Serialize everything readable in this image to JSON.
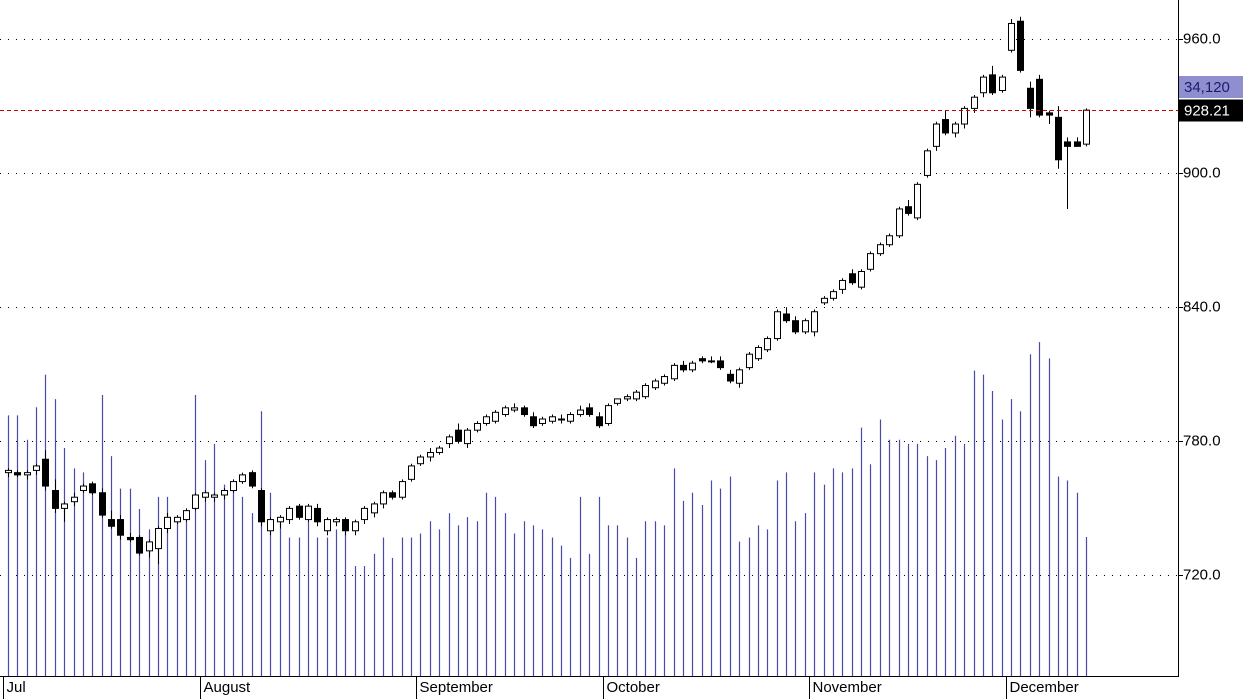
{
  "chart_data": {
    "type": "candlestick",
    "categories": [
      "Jul",
      null,
      null,
      null,
      null,
      null,
      null,
      null,
      null,
      null,
      null,
      null,
      null,
      null,
      null,
      null,
      null,
      null,
      null,
      null,
      null,
      "August",
      null,
      null,
      null,
      null,
      null,
      null,
      null,
      null,
      null,
      null,
      null,
      null,
      null,
      null,
      null,
      null,
      null,
      null,
      null,
      null,
      null,
      null,
      "September",
      null,
      null,
      null,
      null,
      null,
      null,
      null,
      null,
      null,
      null,
      null,
      null,
      null,
      null,
      null,
      null,
      null,
      null,
      null,
      "October",
      null,
      null,
      null,
      null,
      null,
      null,
      null,
      null,
      null,
      null,
      null,
      null,
      null,
      null,
      null,
      null,
      null,
      null,
      null,
      null,
      null,
      "November",
      null,
      null,
      null,
      null,
      null,
      null,
      null,
      null,
      null,
      null,
      null,
      null,
      null,
      null,
      null,
      null,
      null,
      null,
      null,
      null,
      "December",
      null,
      null,
      null,
      null,
      null,
      null,
      null,
      null
    ],
    "open": [
      766,
      766,
      765,
      767,
      772,
      758,
      750,
      753,
      758,
      761,
      757,
      745,
      745,
      737,
      737,
      731,
      732,
      741,
      744,
      745,
      750,
      755,
      755,
      756,
      758,
      762,
      766,
      758,
      740,
      744,
      745,
      751,
      745,
      750,
      740,
      744,
      745,
      740,
      745,
      748,
      752,
      757,
      755,
      763,
      770,
      773,
      775,
      779,
      785,
      779,
      785,
      788,
      789,
      792,
      794,
      795,
      791,
      788,
      789,
      790,
      789,
      792,
      795,
      791,
      788,
      797,
      799,
      799,
      800,
      804,
      806,
      808,
      814,
      812,
      817,
      816,
      816,
      810,
      806,
      813,
      817,
      821,
      826,
      837,
      834,
      829,
      829,
      842,
      844,
      848,
      855,
      849,
      857,
      864,
      868,
      872,
      885,
      880,
      899,
      912,
      924,
      918,
      922,
      929,
      936,
      944,
      937,
      955,
      968,
      938,
      942,
      927,
      925,
      914,
      914,
      913
    ],
    "high": [
      768,
      767,
      767,
      770,
      776,
      763,
      753,
      757,
      761,
      762,
      759,
      749,
      747,
      739,
      738,
      736,
      742,
      748,
      747,
      750,
      757,
      758,
      757,
      759,
      763,
      766,
      767,
      759,
      746,
      747,
      751,
      752,
      752,
      752,
      746,
      746,
      746,
      745,
      751,
      753,
      758,
      758,
      763,
      770,
      774,
      777,
      778,
      783,
      788,
      786,
      789,
      792,
      794,
      796,
      797,
      796,
      793,
      791,
      792,
      792,
      793,
      796,
      797,
      793,
      797,
      799,
      801,
      803,
      806,
      808,
      810,
      815,
      816,
      816,
      818,
      818,
      818,
      812,
      813,
      820,
      823,
      827,
      839,
      840,
      836,
      835,
      839,
      845,
      848,
      853,
      857,
      857,
      865,
      869,
      873,
      885,
      888,
      896,
      911,
      923,
      928,
      923,
      930,
      935,
      944,
      948,
      944,
      969,
      970,
      941,
      944,
      928,
      930,
      916,
      916,
      929
    ],
    "low": [
      764,
      764,
      763,
      765,
      758,
      748,
      744,
      751,
      757,
      756,
      746,
      741,
      736,
      735,
      729,
      728,
      725,
      739,
      743,
      744,
      749,
      753,
      753,
      754,
      757,
      761,
      759,
      742,
      738,
      741,
      743,
      745,
      744,
      742,
      738,
      742,
      738,
      738,
      743,
      746,
      750,
      754,
      754,
      762,
      769,
      771,
      774,
      777,
      779,
      777,
      784,
      787,
      788,
      791,
      793,
      791,
      786,
      787,
      788,
      788,
      788,
      791,
      791,
      786,
      787,
      796,
      798,
      798,
      799,
      803,
      805,
      807,
      811,
      811,
      815,
      815,
      812,
      806,
      804,
      812,
      816,
      820,
      825,
      833,
      828,
      828,
      827,
      841,
      843,
      846,
      850,
      848,
      856,
      863,
      867,
      871,
      881,
      879,
      898,
      910,
      917,
      916,
      920,
      927,
      934,
      935,
      936,
      954,
      945,
      925,
      925,
      922,
      902,
      884,
      912,
      912
    ],
    "close": [
      767,
      765,
      766,
      769,
      760,
      750,
      752,
      755,
      760,
      757,
      747,
      742,
      738,
      736,
      730,
      735,
      741,
      746,
      746,
      749,
      756,
      757,
      756,
      758,
      762,
      765,
      760,
      744,
      745,
      746,
      750,
      746,
      751,
      744,
      745,
      745,
      740,
      744,
      750,
      752,
      757,
      755,
      762,
      769,
      773,
      775,
      777,
      782,
      780,
      785,
      788,
      791,
      793,
      795,
      795,
      792,
      787,
      790,
      791,
      790,
      792,
      794,
      792,
      787,
      796,
      799,
      800,
      802,
      805,
      807,
      809,
      814,
      812,
      815,
      816,
      816,
      813,
      807,
      812,
      819,
      822,
      826,
      838,
      834,
      829,
      834,
      838,
      844,
      847,
      852,
      851,
      856,
      864,
      868,
      872,
      884,
      882,
      895,
      910,
      922,
      918,
      922,
      929,
      934,
      943,
      936,
      943,
      967,
      946,
      929,
      926,
      926,
      906,
      912,
      912,
      928.21
    ],
    "volume": {
      "axis": "y2",
      "color": "#4a4aa8",
      "values": [
        64000,
        64000,
        58000,
        66000,
        74000,
        68000,
        56000,
        51000,
        50000,
        46000,
        69000,
        54000,
        46000,
        46000,
        41000,
        36000,
        44000,
        44000,
        38000,
        38000,
        69000,
        53000,
        57000,
        47000,
        46000,
        44000,
        40000,
        65000,
        45000,
        38000,
        34000,
        34000,
        38000,
        34000,
        34000,
        36000,
        37000,
        27000,
        27000,
        30000,
        34000,
        29000,
        34000,
        34000,
        35000,
        38000,
        36000,
        40000,
        37000,
        39000,
        38000,
        45000,
        44000,
        40000,
        35000,
        38000,
        37000,
        36000,
        34000,
        32000,
        29000,
        44000,
        30000,
        44000,
        37000,
        37000,
        34000,
        29000,
        38000,
        38000,
        37000,
        51000,
        43000,
        45000,
        42000,
        48000,
        46000,
        49000,
        33000,
        34000,
        37000,
        36000,
        48000,
        50000,
        38000,
        40000,
        50000,
        47000,
        51000,
        50000,
        51000,
        61000,
        52000,
        63000,
        58000,
        58000,
        57000,
        57000,
        54000,
        53000,
        56000,
        59000,
        57000,
        75000,
        74000,
        70000,
        63000,
        68000,
        65000,
        79000,
        82000,
        78000,
        49000,
        48000,
        45000,
        34120
      ],
      "value_labels": [
        null,
        null,
        null,
        null,
        null,
        null,
        null,
        null,
        null,
        null,
        null,
        null,
        null,
        null,
        null,
        null,
        null,
        null,
        null,
        null,
        null,
        null,
        null,
        null,
        null,
        null,
        null,
        null,
        null,
        null,
        null,
        null,
        null,
        null,
        null,
        null,
        null,
        null,
        null,
        null,
        null,
        null,
        null,
        null,
        null,
        null,
        null,
        null,
        null,
        null,
        null,
        null,
        null,
        null,
        null,
        null,
        null,
        null,
        null,
        null,
        null,
        null,
        null,
        null,
        null,
        null,
        null,
        null,
        null,
        null,
        null,
        null,
        null,
        null,
        null,
        null,
        null,
        null,
        null,
        null,
        null,
        null,
        null,
        null,
        null,
        null,
        null,
        null,
        null,
        null,
        null,
        null,
        null,
        null,
        null,
        null,
        null,
        null,
        null,
        null,
        null,
        null,
        null,
        null,
        null,
        null,
        null,
        null,
        null,
        null,
        null,
        null,
        null,
        null,
        null,
        "34,120"
      ]
    },
    "up_color": "#ffffff",
    "down_color": "#000000",
    "last_line_color": "#cc0000",
    "ylim": [
      675,
      977.5
    ],
    "yticks": [
      {
        "value": 720,
        "label": "720.0"
      },
      {
        "value": 780,
        "label": "780.0"
      },
      {
        "value": 840,
        "label": "840.0"
      },
      {
        "value": 900,
        "label": "900.0"
      },
      {
        "value": 960,
        "label": "960.0"
      }
    ],
    "y2lim": [
      0,
      166000
    ],
    "grid": true
  }
}
